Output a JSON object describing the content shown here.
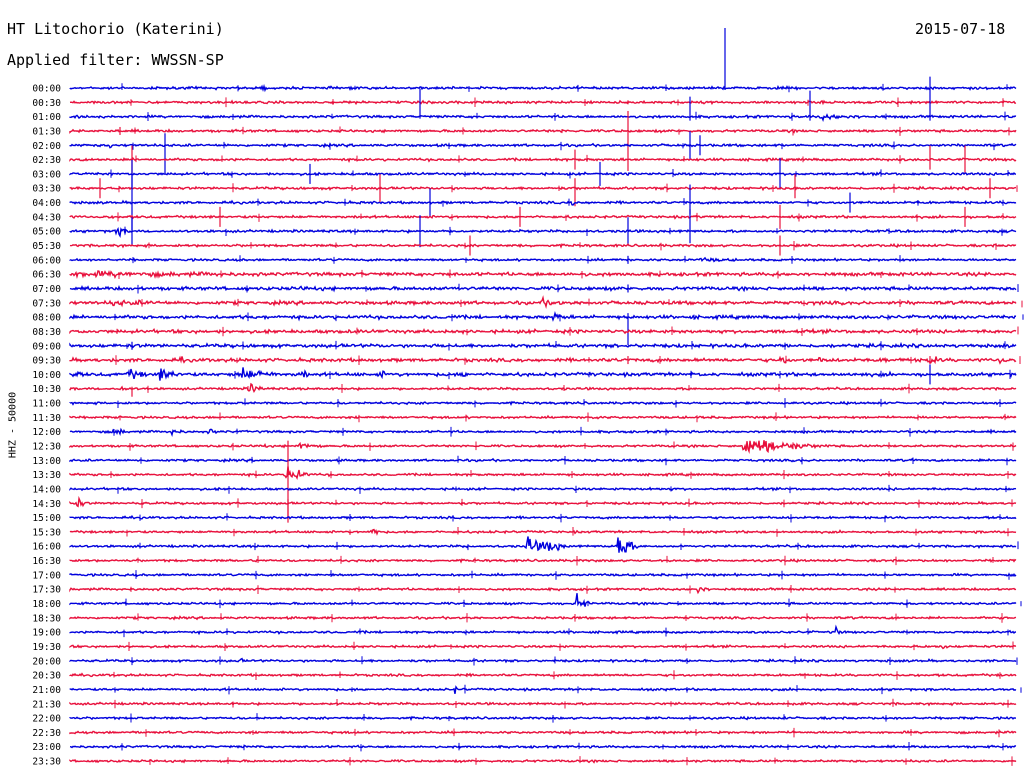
{
  "header": {
    "station": "HT Litochorio (Katerini)",
    "date": "2015-07-18",
    "filter": "Applied filter: WWSSN-SP"
  },
  "chart_data": {
    "type": "line",
    "title": "HT Litochorio (Katerini)",
    "ylabel": "HHZ - 50000",
    "colors": [
      "#0000dd",
      "#e8103c"
    ],
    "rows": [
      "00:00",
      "00:30",
      "01:00",
      "01:30",
      "02:00",
      "02:30",
      "03:00",
      "03:30",
      "04:00",
      "04:30",
      "05:00",
      "05:30",
      "06:00",
      "06:30",
      "07:00",
      "07:30",
      "08:00",
      "08:30",
      "09:00",
      "09:30",
      "10:00",
      "10:30",
      "11:00",
      "11:30",
      "12:00",
      "12:30",
      "13:00",
      "13:30",
      "14:00",
      "14:30",
      "15:00",
      "15:30",
      "16:00",
      "16:30",
      "17:00",
      "17:30",
      "18:00",
      "18:30",
      "19:00",
      "19:30",
      "20:00",
      "20:30",
      "21:00",
      "21:30",
      "22:00",
      "22:30",
      "23:00",
      "23:30"
    ]
  }
}
